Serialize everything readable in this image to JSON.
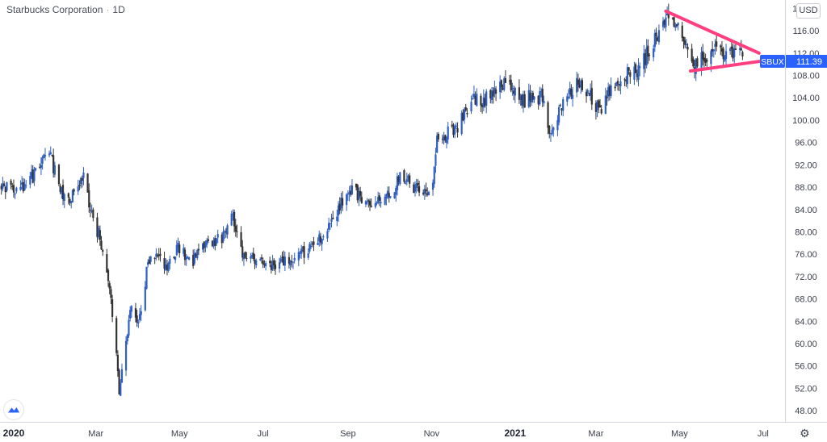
{
  "header": {
    "symbol_name": "Starbucks Corporation",
    "separator": "·",
    "interval": "1D",
    "currency": "USD"
  },
  "price_label": {
    "ticker": "SBUX",
    "value": "111.39",
    "color": "#2962ff"
  },
  "icons": {
    "logo": "tradingview-logo-icon",
    "settings": "gear-icon"
  },
  "colors": {
    "up_candle": "#2f5fc4",
    "down_candle": "#333333",
    "trendline": "#ff3d7f",
    "axis_text": "#3a3f4a",
    "axis_line": "#d1d4dc"
  },
  "chart_data": {
    "type": "candlestick",
    "ylim": [
      46,
      121.5
    ],
    "y_ticks": [
      "48.00",
      "52.00",
      "56.00",
      "60.00",
      "64.00",
      "68.00",
      "72.00",
      "76.00",
      "80.00",
      "84.00",
      "88.00",
      "92.00",
      "96.00",
      "100.00",
      "104.00",
      "108.00",
      "112.00",
      "116.00",
      "120.00"
    ],
    "x_ticks": [
      {
        "label": "2020",
        "date": "2020-01-01",
        "bold": true
      },
      {
        "label": "Mar",
        "date": "2020-03-01"
      },
      {
        "label": "May",
        "date": "2020-05-01"
      },
      {
        "label": "Jul",
        "date": "2020-07-01"
      },
      {
        "label": "Sep",
        "date": "2020-09-01"
      },
      {
        "label": "Nov",
        "date": "2020-11-01"
      },
      {
        "label": "2021",
        "date": "2021-01-01",
        "bold": true
      },
      {
        "label": "Mar",
        "date": "2021-03-01"
      },
      {
        "label": "May",
        "date": "2021-05-01"
      },
      {
        "label": "Jul",
        "date": "2021-07-01"
      }
    ],
    "xlim": [
      "2019-12-22",
      "2021-07-17"
    ],
    "close_path": [
      [
        "2019-12-22",
        88.0
      ],
      [
        "2020-01-10",
        88.0
      ],
      [
        "2020-01-20",
        92.0
      ],
      [
        "2020-01-28",
        94.0
      ],
      [
        "2020-02-03",
        87.5
      ],
      [
        "2020-02-10",
        85.0
      ],
      [
        "2020-02-20",
        90.5
      ],
      [
        "2020-02-27",
        83.0
      ],
      [
        "2020-03-05",
        78.0
      ],
      [
        "2020-03-10",
        72.0
      ],
      [
        "2020-03-16",
        58.0
      ],
      [
        "2020-03-18",
        51.0
      ],
      [
        "2020-03-23",
        60.0
      ],
      [
        "2020-03-26",
        67.0
      ],
      [
        "2020-04-01",
        64.0
      ],
      [
        "2020-04-08",
        74.0
      ],
      [
        "2020-04-15",
        76.0
      ],
      [
        "2020-04-22",
        74.0
      ],
      [
        "2020-04-30",
        77.0
      ],
      [
        "2020-05-10",
        74.5
      ],
      [
        "2020-05-22",
        78.0
      ],
      [
        "2020-06-01",
        79.0
      ],
      [
        "2020-06-08",
        83.5
      ],
      [
        "2020-06-15",
        76.5
      ],
      [
        "2020-06-25",
        75.0
      ],
      [
        "2020-07-05",
        73.5
      ],
      [
        "2020-07-15",
        74.5
      ],
      [
        "2020-07-25",
        75.0
      ],
      [
        "2020-08-05",
        77.5
      ],
      [
        "2020-08-15",
        80.0
      ],
      [
        "2020-08-25",
        84.0
      ],
      [
        "2020-09-01",
        88.0
      ],
      [
        "2020-09-10",
        86.0
      ],
      [
        "2020-09-20",
        84.5
      ],
      [
        "2020-10-01",
        87.0
      ],
      [
        "2020-10-10",
        90.0
      ],
      [
        "2020-10-20",
        88.0
      ],
      [
        "2020-10-28",
        86.5
      ],
      [
        "2020-11-02",
        89.0
      ],
      [
        "2020-11-05",
        96.0
      ],
      [
        "2020-11-12",
        98.0
      ],
      [
        "2020-11-22",
        99.5
      ],
      [
        "2020-12-01",
        104.0
      ],
      [
        "2020-12-10",
        103.5
      ],
      [
        "2020-12-20",
        106.0
      ],
      [
        "2020-12-28",
        107.0
      ],
      [
        "2021-01-05",
        103.0
      ],
      [
        "2021-01-12",
        104.5
      ],
      [
        "2021-01-20",
        104.0
      ],
      [
        "2021-01-27",
        97.5
      ],
      [
        "2021-02-05",
        103.5
      ],
      [
        "2021-02-15",
        106.5
      ],
      [
        "2021-02-25",
        104.0
      ],
      [
        "2021-03-05",
        101.0
      ],
      [
        "2021-03-12",
        106.0
      ],
      [
        "2021-03-22",
        108.0
      ],
      [
        "2021-03-31",
        109.0
      ],
      [
        "2021-04-08",
        112.0
      ],
      [
        "2021-04-15",
        115.5
      ],
      [
        "2021-04-22",
        118.0
      ],
      [
        "2021-04-28",
        117.0
      ],
      [
        "2021-05-04",
        114.0
      ],
      [
        "2021-05-12",
        109.5
      ],
      [
        "2021-05-20",
        111.5
      ],
      [
        "2021-05-28",
        113.0
      ],
      [
        "2021-06-03",
        112.0
      ],
      [
        "2021-06-10",
        112.5
      ],
      [
        "2021-06-16",
        111.39
      ]
    ],
    "last_close": 111.39,
    "annotations": [
      {
        "type": "trendline",
        "name": "upper-resistance",
        "from": [
          "2021-04-21",
          119.5
        ],
        "to": [
          "2021-06-28",
          112.0
        ]
      },
      {
        "type": "trendline",
        "name": "lower-support",
        "from": [
          "2021-05-09",
          108.8
        ],
        "to": [
          "2021-06-28",
          110.5
        ]
      }
    ]
  }
}
